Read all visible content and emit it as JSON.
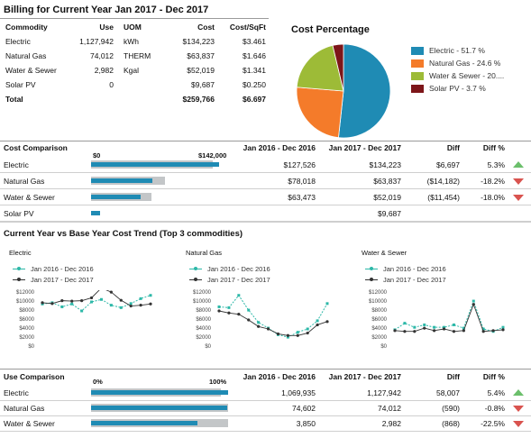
{
  "billing": {
    "title": "Billing for Current Year Jan 2017 - Dec 2017",
    "headers": {
      "commodity": "Commodity",
      "use": "Use",
      "uom": "UOM",
      "cost": "Cost",
      "cost_sqft": "Cost/SqFt"
    },
    "rows": [
      {
        "commodity": "Electric",
        "use": "1,127,942",
        "uom": "kWh",
        "cost": "$134,223",
        "cost_sqft": "$3.461"
      },
      {
        "commodity": "Natural Gas",
        "use": "74,012",
        "uom": "THERM",
        "cost": "$63,837",
        "cost_sqft": "$1.646"
      },
      {
        "commodity": "Water & Sewer",
        "use": "2,982",
        "uom": "Kgal",
        "cost": "$52,019",
        "cost_sqft": "$1.341"
      },
      {
        "commodity": "Solar PV",
        "use": "0",
        "uom": "",
        "cost": "$9,687",
        "cost_sqft": "$0.250"
      }
    ],
    "total": {
      "label": "Total",
      "cost": "$259,766",
      "cost_sqft": "$6.697"
    }
  },
  "cost_percentage": {
    "title": "Cost Percentage",
    "legend": [
      "Electric - 51.7 %",
      "Natural Gas - 24.6 %",
      "Water & Sewer - 20....",
      "Solar PV - 3.7 %"
    ],
    "colors": [
      "#1f8bb4",
      "#f47b2a",
      "#9dbb37",
      "#7d1619"
    ]
  },
  "cost_comparison": {
    "title": "Cost Comparison",
    "scale_min": "$0",
    "scale_max": "$142,000",
    "col_base": "Jan 2016 - Dec 2016",
    "col_curr": "Jan 2017 - Dec 2017",
    "col_diff": "Diff",
    "col_diffpct": "Diff %",
    "rows": [
      {
        "name": "Electric",
        "base": "$127,526",
        "curr": "$134,223",
        "diff": "$6,697",
        "pct": "5.3%",
        "trend": "up",
        "base_frac": 0.898,
        "curr_frac": 0.945
      },
      {
        "name": "Natural Gas",
        "base": "$78,018",
        "curr": "$63,837",
        "diff": "($14,182)",
        "pct": "-18.2%",
        "trend": "down",
        "base_frac": 0.549,
        "curr_frac": 0.45
      },
      {
        "name": "Water & Sewer",
        "base": "$63,473",
        "curr": "$52,019",
        "diff": "($11,454)",
        "pct": "-18.0%",
        "trend": "down",
        "base_frac": 0.447,
        "curr_frac": 0.366
      },
      {
        "name": "Solar PV",
        "base": "",
        "curr": "$9,687",
        "diff": "",
        "pct": "",
        "trend": "",
        "base_frac": 0,
        "curr_frac": 0.068
      }
    ]
  },
  "trend": {
    "title": "Current Year vs Base Year Cost Trend (Top 3 commodities)",
    "series_names": [
      "Jan 2016 - Dec 2016",
      "Jan 2017 - Dec 2017"
    ],
    "series_colors": [
      "#2cb8a8",
      "#333333"
    ],
    "y_ticks": [
      "$12000",
      "$10000",
      "$8000",
      "$6000",
      "$4000",
      "$2000",
      "$0"
    ]
  },
  "chart_data": [
    {
      "type": "line",
      "title": "Electric",
      "ylim": [
        0,
        12000
      ],
      "series": [
        {
          "name": "Jan 2016 - Dec 2016",
          "values": [
            10500,
            10800,
            9800,
            10500,
            8800,
            11000,
            11600,
            10200,
            9600,
            10600,
            11800,
            12600
          ]
        },
        {
          "name": "Jan 2017 - Dec 2017",
          "values": [
            10800,
            10600,
            11300,
            11200,
            11300,
            12000,
            14400,
            13400,
            11400,
            10000,
            10200,
            10500
          ]
        }
      ]
    },
    {
      "type": "line",
      "title": "Natural Gas",
      "ylim": [
        0,
        12000
      ],
      "series": [
        {
          "name": "Jan 2016 - Dec 2016",
          "values": [
            9800,
            9600,
            12600,
            9000,
            6000,
            4600,
            3000,
            2400,
            3600,
            4400,
            6400,
            10600
          ]
        },
        {
          "name": "Jan 2017 - Dec 2017",
          "values": [
            8800,
            8300,
            8000,
            6600,
            5000,
            4400,
            3200,
            2800,
            2800,
            3400,
            5400,
            6200
          ]
        }
      ]
    },
    {
      "type": "line",
      "title": "Water & Sewer",
      "ylim": [
        0,
        12000
      ],
      "series": [
        {
          "name": "Jan 2016 - Dec 2016",
          "values": [
            4200,
            5800,
            4800,
            5400,
            4800,
            4800,
            5400,
            4600,
            11200,
            4400,
            3800,
            4800
          ]
        },
        {
          "name": "Jan 2017 - Dec 2017",
          "values": [
            4000,
            3800,
            3800,
            4600,
            4000,
            4400,
            3800,
            4000,
            10400,
            3800,
            4000,
            4200
          ]
        }
      ]
    }
  ],
  "use_comparison": {
    "title": "Use Comparison",
    "scale_min": "0%",
    "scale_max": "100%",
    "col_base": "Jan 2016 - Dec 2016",
    "col_curr": "Jan 2017 - Dec 2017",
    "col_diff": "Diff",
    "col_diffpct": "Diff %",
    "rows": [
      {
        "name": "Electric",
        "base": "1,069,935",
        "curr": "1,127,942",
        "diff": "58,007",
        "pct": "5.4%",
        "trend": "up",
        "base_frac": 0.949,
        "curr_frac": 1.0
      },
      {
        "name": "Natural Gas",
        "base": "74,602",
        "curr": "74,012",
        "diff": "(590)",
        "pct": "-0.8%",
        "trend": "down",
        "base_frac": 1.0,
        "curr_frac": 0.992
      },
      {
        "name": "Water & Sewer",
        "base": "3,850",
        "curr": "2,982",
        "diff": "(868)",
        "pct": "-22.5%",
        "trend": "down",
        "base_frac": 1.0,
        "curr_frac": 0.775
      }
    ]
  }
}
